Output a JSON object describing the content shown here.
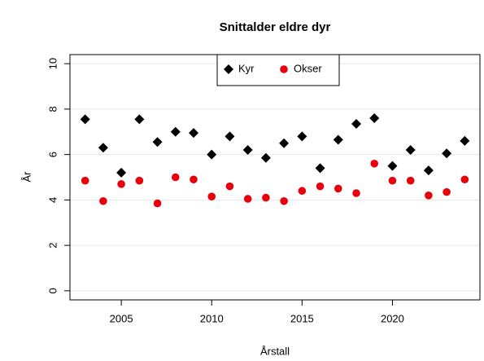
{
  "chart_data": {
    "type": "scatter",
    "title": "Snittalder eldre dyr",
    "x_label": "Årstall",
    "y_label": "År",
    "x": [
      2003,
      2004,
      2005,
      2006,
      2007,
      2008,
      2009,
      2010,
      2011,
      2012,
      2013,
      2014,
      2015,
      2016,
      2017,
      2018,
      2019,
      2020,
      2021,
      2022,
      2023,
      2024
    ],
    "series": [
      {
        "name": "Kyr",
        "color": "#000000",
        "marker": "diamond",
        "values": [
          7.55,
          6.3,
          5.2,
          7.55,
          6.55,
          7.0,
          6.95,
          6.0,
          6.8,
          6.2,
          5.85,
          6.5,
          6.8,
          5.4,
          6.65,
          7.35,
          7.6,
          5.5,
          6.2,
          5.3,
          6.05,
          6.6
        ]
      },
      {
        "name": "Okser",
        "color": "#e8000b",
        "marker": "circle",
        "values": [
          4.85,
          3.95,
          4.7,
          4.85,
          3.85,
          5.0,
          4.9,
          4.15,
          4.6,
          4.05,
          4.1,
          3.95,
          4.4,
          4.6,
          4.5,
          4.3,
          5.6,
          4.85,
          4.85,
          4.2,
          4.35,
          4.9
        ]
      }
    ],
    "xlim": [
      2002.16,
      2024.84
    ],
    "xticks": [
      2005,
      2010,
      2015,
      2020
    ],
    "ylim": [
      -0.4,
      10.4
    ],
    "yticks": [
      0,
      2,
      4,
      6,
      8,
      10
    ],
    "grid": true,
    "legend": "top"
  }
}
